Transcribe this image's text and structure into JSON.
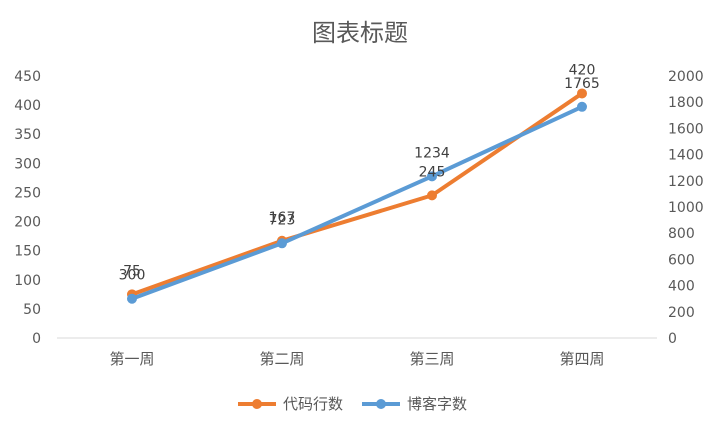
{
  "chart_data": {
    "type": "line",
    "title": "图表标题",
    "categories": [
      "第一周",
      "第二周",
      "第三周",
      "第四周"
    ],
    "series": [
      {
        "name": "代码行数",
        "axis": "left",
        "color": "#ED7D31",
        "values": [
          75,
          167,
          245,
          420
        ],
        "labels": [
          "75",
          "167",
          "245",
          "420"
        ]
      },
      {
        "name": "博客字数",
        "axis": "right",
        "color": "#5B9BD5",
        "values": [
          300,
          723,
          1234,
          1765
        ],
        "labels": [
          "300",
          "723",
          "1234",
          "1765"
        ]
      }
    ],
    "y_left": {
      "min": 0,
      "max": 450,
      "step": 50
    },
    "y_right": {
      "min": 0,
      "max": 2000,
      "step": 200
    },
    "grid": false,
    "legend_position": "bottom"
  }
}
